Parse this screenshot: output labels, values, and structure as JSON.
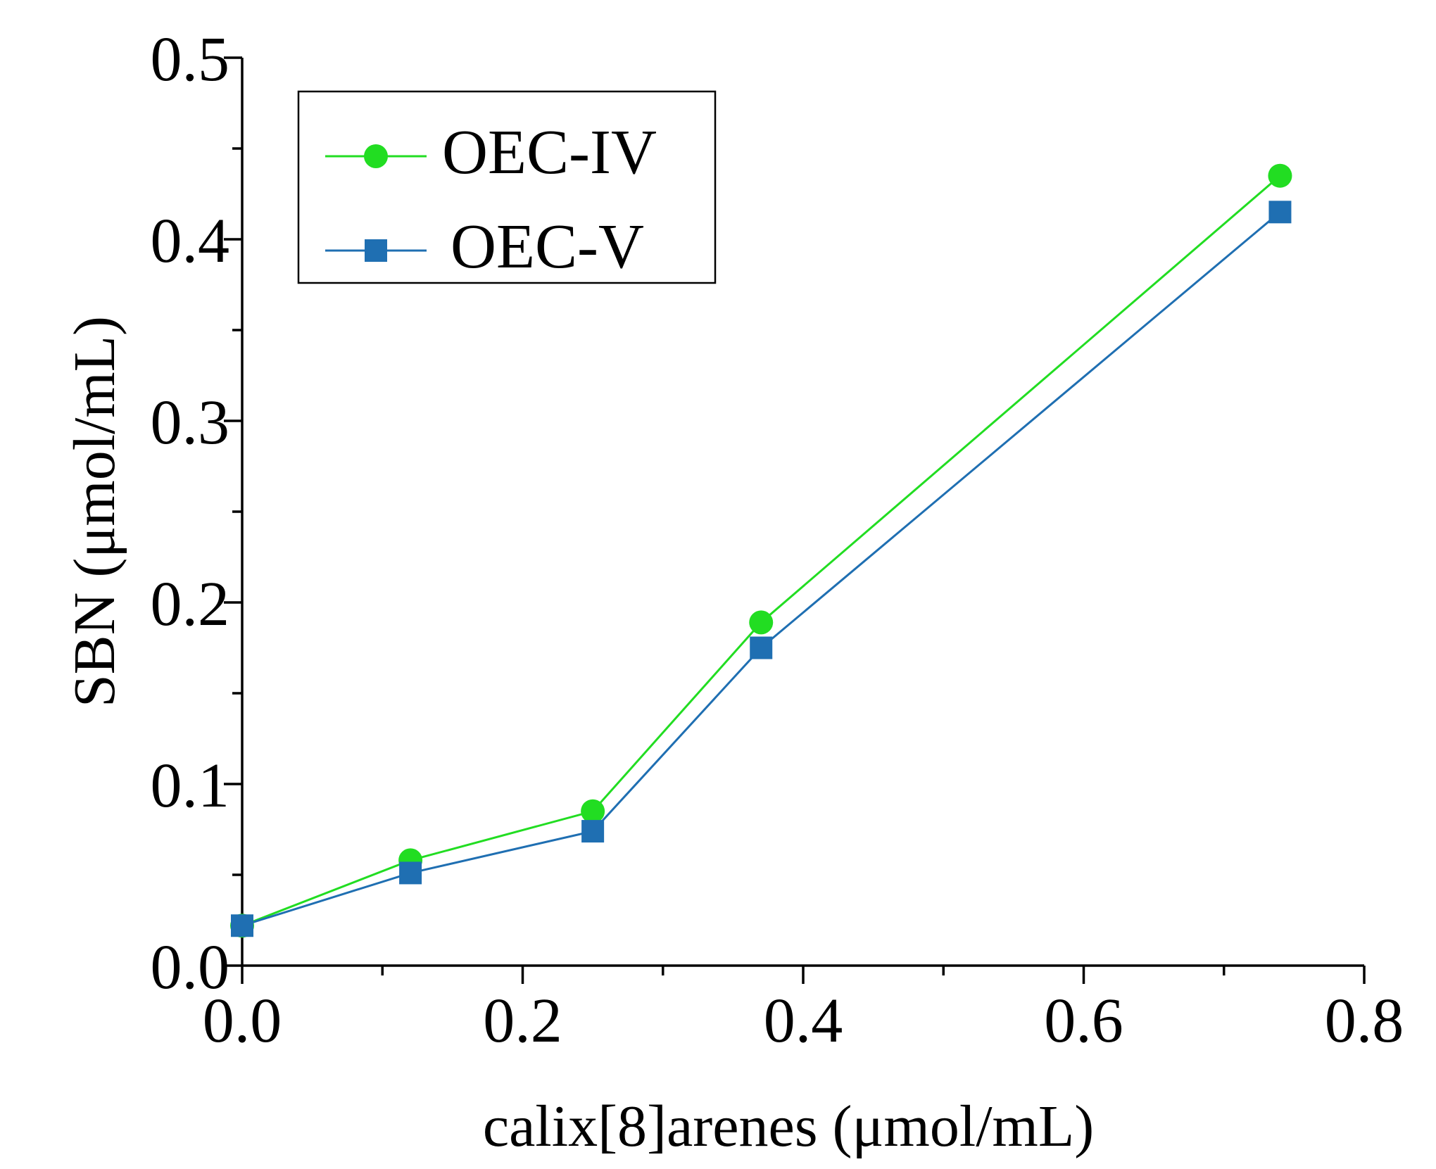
{
  "chart_data": {
    "type": "line",
    "title": "",
    "xlabel": "calix[8]arenes (μmol/mL)",
    "ylabel": "SBN (μmol/mL)",
    "xlim": [
      0,
      0.8
    ],
    "ylim": [
      0,
      0.5
    ],
    "x_ticks": [
      "0.0",
      "0.2",
      "0.4",
      "0.6",
      "0.8"
    ],
    "y_ticks": [
      "0.0",
      "0.1",
      "0.2",
      "0.3",
      "0.4",
      "0.5"
    ],
    "x_tick_values": [
      0,
      0.2,
      0.4,
      0.6,
      0.8
    ],
    "y_tick_values": [
      0,
      0.1,
      0.2,
      0.3,
      0.4,
      0.5
    ],
    "x_minor_tick_values": [
      0.1,
      0.3,
      0.5,
      0.7
    ],
    "y_minor_tick_values": [
      0.05,
      0.15,
      0.25,
      0.35,
      0.45
    ],
    "legend_position": "top-left",
    "series": [
      {
        "name": "OEC-IV",
        "marker": "circle",
        "color": "#22dd22",
        "x": [
          0,
          0.12,
          0.25,
          0.37,
          0.74
        ],
        "y": [
          0.022,
          0.058,
          0.085,
          0.189,
          0.435
        ]
      },
      {
        "name": "OEC-V",
        "marker": "square",
        "color": "#1f6fb2",
        "x": [
          0,
          0.12,
          0.25,
          0.37,
          0.74
        ],
        "y": [
          0.022,
          0.051,
          0.074,
          0.175,
          0.415
        ]
      }
    ]
  }
}
